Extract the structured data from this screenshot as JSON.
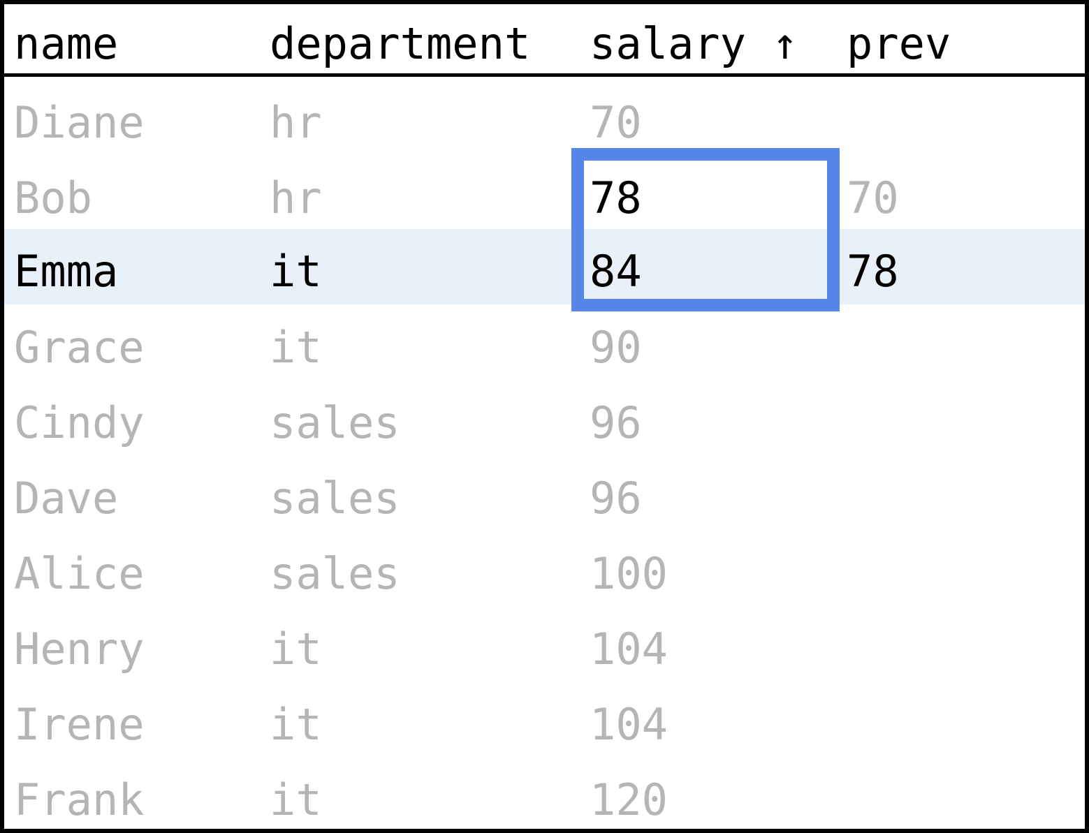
{
  "header": {
    "name": "name",
    "department": "department",
    "salary": "salary ↑",
    "prev": "prev"
  },
  "accent_color": "#5586e8",
  "highlight_row_color": "#e8f0fa",
  "rows": [
    {
      "name": "Diane",
      "department": "hr",
      "salary": "70",
      "prev": ""
    },
    {
      "name": "Bob",
      "department": "hr",
      "salary": "78",
      "prev": "70"
    },
    {
      "name": "Emma",
      "department": "it",
      "salary": "84",
      "prev": "78"
    },
    {
      "name": "Grace",
      "department": "it",
      "salary": "90",
      "prev": ""
    },
    {
      "name": "Cindy",
      "department": "sales",
      "salary": "96",
      "prev": ""
    },
    {
      "name": "Dave",
      "department": "sales",
      "salary": "96",
      "prev": ""
    },
    {
      "name": "Alice",
      "department": "sales",
      "salary": "100",
      "prev": ""
    },
    {
      "name": "Henry",
      "department": "it",
      "salary": "104",
      "prev": ""
    },
    {
      "name": "Irene",
      "department": "it",
      "salary": "104",
      "prev": ""
    },
    {
      "name": "Frank",
      "department": "it",
      "salary": "120",
      "prev": ""
    }
  ]
}
